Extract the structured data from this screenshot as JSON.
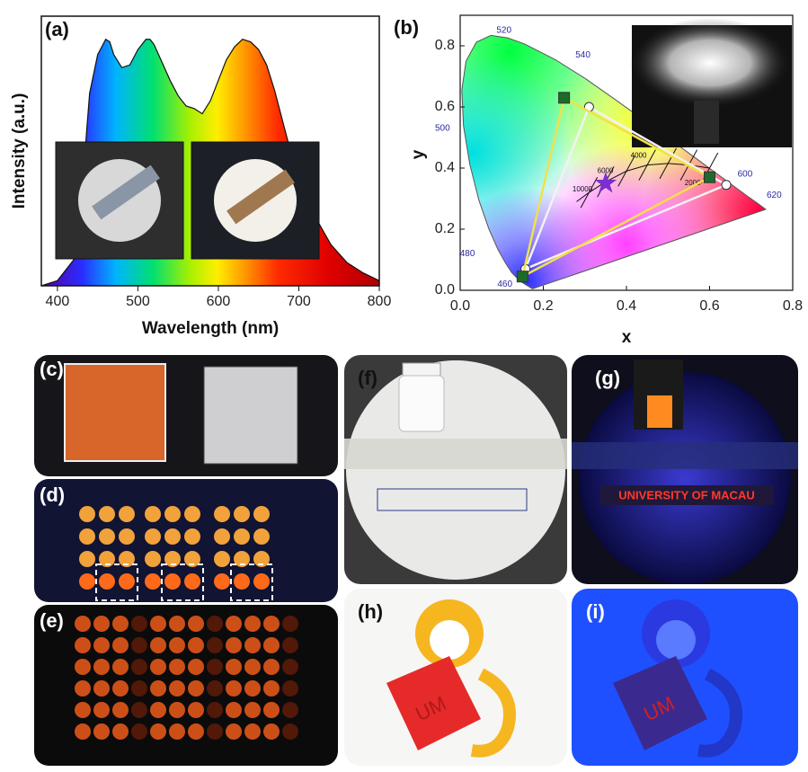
{
  "chart_data": [
    {
      "type": "area",
      "panel_label": "(a)",
      "xlabel": "Wavelength (nm)",
      "ylabel": "Intensity (a.u.)",
      "x": [
        380,
        400,
        420,
        430,
        440,
        450,
        460,
        465,
        470,
        480,
        490,
        500,
        510,
        515,
        520,
        530,
        540,
        550,
        560,
        570,
        580,
        590,
        600,
        610,
        620,
        630,
        640,
        650,
        660,
        670,
        680,
        690,
        700,
        720,
        740,
        760,
        780,
        800
      ],
      "values": [
        0,
        0.02,
        0.1,
        0.35,
        0.75,
        0.9,
        0.96,
        0.95,
        0.9,
        0.85,
        0.86,
        0.92,
        0.96,
        0.96,
        0.94,
        0.87,
        0.8,
        0.74,
        0.7,
        0.69,
        0.67,
        0.72,
        0.8,
        0.88,
        0.93,
        0.96,
        0.95,
        0.92,
        0.86,
        0.76,
        0.64,
        0.52,
        0.42,
        0.27,
        0.16,
        0.09,
        0.05,
        0.02
      ],
      "xlim": [
        380,
        800
      ],
      "xticks": [
        400,
        500,
        600,
        700,
        800
      ],
      "ylim": [
        0,
        1.05
      ]
    },
    {
      "type": "cie",
      "panel_label": "(b)",
      "xlabel": "x",
      "ylabel": "y",
      "xlim": [
        0,
        0.8
      ],
      "ylim": [
        0,
        0.9
      ],
      "xticks": [
        {
          "value": 0,
          "label": "0.0"
        },
        0.2,
        0.4,
        0.6,
        0.8
      ],
      "yticks": [
        {
          "value": 0,
          "label": "0.0"
        },
        0.2,
        0.4,
        0.6,
        0.8
      ],
      "series": [
        {
          "marker": "circle",
          "color": "#ffffff",
          "line_color": "#f2f2f2",
          "x": [
            0.157,
            0.31,
            0.64
          ],
          "values": [
            0.07,
            0.6,
            0.345
          ]
        },
        {
          "marker": "square",
          "color": "#1d6b2a",
          "line_color": "#f3e04a",
          "x": [
            0.25,
            0.15,
            0.6
          ],
          "values": [
            0.63,
            0.045,
            0.37
          ]
        },
        {
          "marker": "star",
          "color": "#7b2fd0",
          "x": [
            0.35
          ],
          "values": [
            0.35
          ]
        }
      ],
      "locus_labels": [
        "460",
        "480",
        "500",
        "520",
        "540",
        "600",
        "620"
      ],
      "cct_labels": [
        "10000",
        "6000",
        "4000",
        "2000"
      ]
    }
  ],
  "photos": {
    "c": "(c)",
    "d": "(d)",
    "e": "(e)",
    "f": "(f)",
    "g": "(g)",
    "h": "(h)",
    "i": "(i)",
    "g_sign": "UNIVERSITY OF MACAU",
    "h_mark": "UM",
    "i_mark": "UM"
  }
}
